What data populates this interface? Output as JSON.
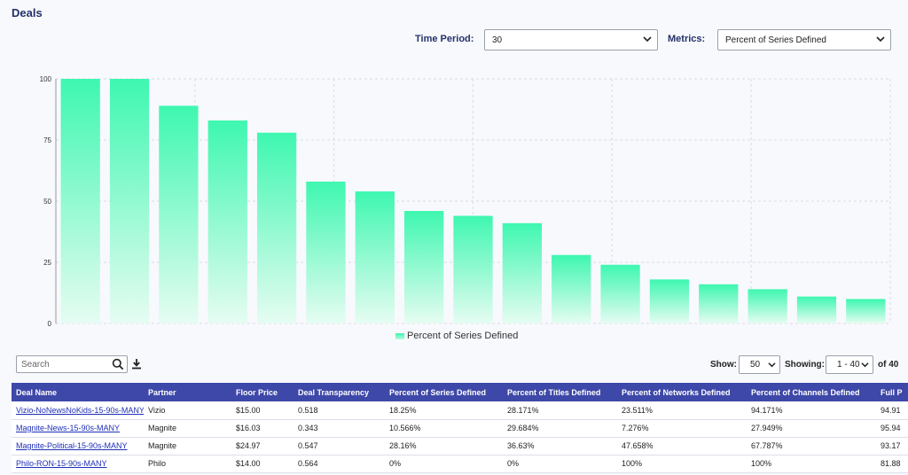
{
  "page": {
    "title": "Deals"
  },
  "controls": {
    "time_period_label": "Time Period:",
    "time_period_value": "30",
    "metrics_label": "Metrics:",
    "metrics_value": "Percent of Series Defined"
  },
  "chart_data": {
    "type": "bar",
    "ylim": [
      0,
      100
    ],
    "yticks": [
      0,
      25,
      50,
      75,
      100
    ],
    "grid": true,
    "legend_position": "bottom",
    "bar_color_top": "#3ef7b0",
    "bar_color_bottom": "#e6fcf2",
    "series": [
      {
        "name": "Percent of Series Defined",
        "values": [
          100,
          100,
          89,
          83,
          78,
          58,
          54,
          46,
          44,
          41,
          28,
          24,
          18,
          16,
          14,
          11,
          10
        ]
      }
    ]
  },
  "toolbar": {
    "search_placeholder": "Search",
    "show_label": "Show:",
    "show_value": "50",
    "showing_label": "Showing:",
    "showing_value": "1 - 40",
    "of_total": "of 40"
  },
  "table": {
    "columns": [
      "Deal Name",
      "Partner",
      "Floor Price",
      "Deal Transparency",
      "Percent of Series Defined",
      "Percent of Titles Defined",
      "Percent of Networks Defined",
      "Percent of Channels Defined",
      "Full P"
    ],
    "rows": [
      [
        "Vizio-NoNewsNoKids-15-90s-MANY",
        "Vizio",
        "$15.00",
        "0.518",
        "18.25%",
        "28.171%",
        "23.511%",
        "94.171%",
        "94.91"
      ],
      [
        "Magnite-News-15-90s-MANY",
        "Magnite",
        "$16.03",
        "0.343",
        "10.566%",
        "29.684%",
        "7.276%",
        "27.949%",
        "95.94"
      ],
      [
        "Magnite-Political-15-90s-MANY",
        "Magnite",
        "$24.97",
        "0.547",
        "28.16%",
        "36.63%",
        "47.658%",
        "67.787%",
        "93.17"
      ],
      [
        "Philo-RON-15-90s-MANY",
        "Philo",
        "$14.00",
        "0.564",
        "0%",
        "0%",
        "100%",
        "100%",
        "81.88"
      ]
    ]
  },
  "colors": {
    "header_bg": "#3e48a8",
    "title_color": "#243169",
    "link_color": "#1f2fb9"
  }
}
